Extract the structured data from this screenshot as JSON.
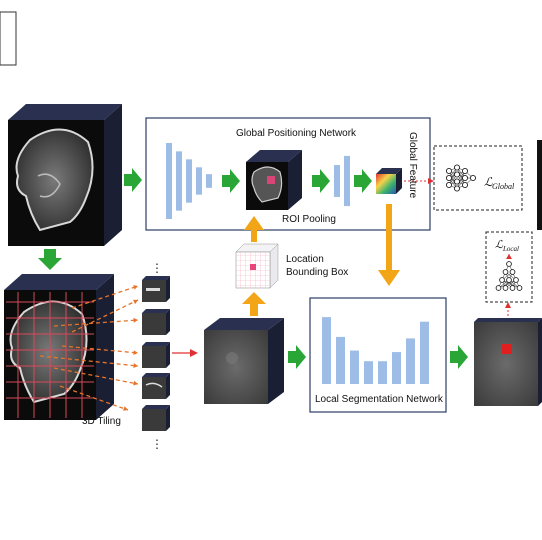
{
  "labels": {
    "global_network": "Global Positioning Network",
    "roi_pooling": "ROI Pooling",
    "global_feature": "Global Feature",
    "location_bbox_line1": "Location",
    "location_bbox_line2": "Bounding Box",
    "local_segmentation_network": "Local Segmentation Network",
    "tiling": "3D Tiling",
    "loss_global_symbol": "ℒ",
    "loss_global_sub": "Global",
    "loss_local_symbol": "ℒ",
    "loss_local_sub": "Local",
    "ellipsis": "⋮"
  },
  "colors": {
    "green_arrow": "#2aa637",
    "orange_arrow": "#f2a516",
    "red_arrow": "#e03030",
    "bar_blue": "#9dbde6",
    "tile_dashed": "#e8732a",
    "grid_red": "#d84a5a",
    "network_box_border": "#2c3e66"
  },
  "encoder_bars": [
    1.0,
    0.78,
    0.57,
    0.36,
    0.18
  ],
  "decoder_bars": [
    0.42,
    0.66
  ],
  "local_bars": [
    0.88,
    0.62,
    0.44,
    0.3,
    0.3,
    0.42,
    0.6,
    0.82
  ]
}
